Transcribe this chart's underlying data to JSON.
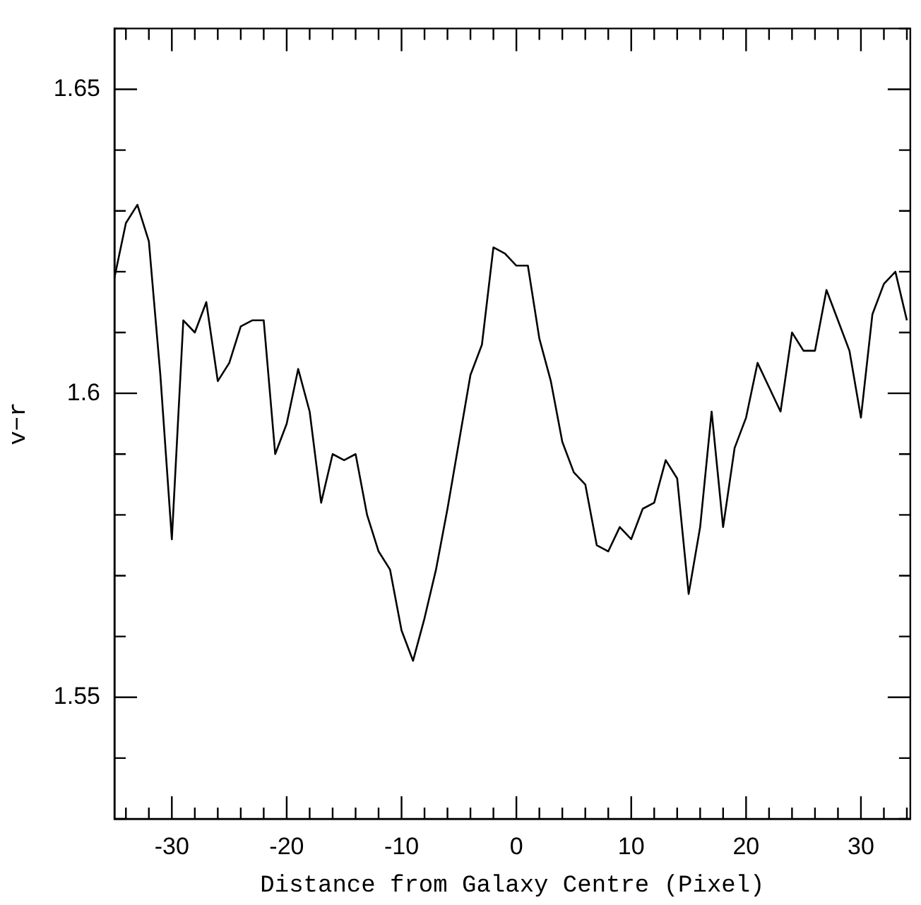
{
  "chart_data": {
    "type": "line",
    "xlabel": "Distance from Galaxy Centre (Pixel)",
    "ylabel": "v−r",
    "legend": false,
    "grid": false,
    "marker": "none",
    "line_style": "solid",
    "xlim": [
      -35,
      34.3
    ],
    "ylim": [
      1.53,
      1.66
    ],
    "xticks": [
      {
        "value": -34,
        "label": null
      },
      {
        "value": -32,
        "label": null
      },
      -30,
      {
        "value": -28,
        "label": null
      },
      {
        "value": -26,
        "label": null
      },
      {
        "value": -24,
        "label": null
      },
      {
        "value": -22,
        "label": null
      },
      -20,
      {
        "value": -18,
        "label": null
      },
      {
        "value": -16,
        "label": null
      },
      {
        "value": -14,
        "label": null
      },
      {
        "value": -12,
        "label": null
      },
      -10,
      {
        "value": -8,
        "label": null
      },
      {
        "value": -6,
        "label": null
      },
      {
        "value": -4,
        "label": null
      },
      {
        "value": -2,
        "label": null
      },
      0,
      {
        "value": 2,
        "label": null
      },
      {
        "value": 4,
        "label": null
      },
      {
        "value": 6,
        "label": null
      },
      {
        "value": 8,
        "label": null
      },
      10,
      {
        "value": 12,
        "label": null
      },
      {
        "value": 14,
        "label": null
      },
      {
        "value": 16,
        "label": null
      },
      {
        "value": 18,
        "label": null
      },
      20,
      {
        "value": 22,
        "label": null
      },
      {
        "value": 24,
        "label": null
      },
      {
        "value": 26,
        "label": null
      },
      {
        "value": 28,
        "label": null
      },
      30,
      {
        "value": 32,
        "label": null
      },
      {
        "value": 34,
        "label": null
      }
    ],
    "yticks": [
      {
        "value": 1.53,
        "label": null
      },
      {
        "value": 1.54,
        "label": null
      },
      1.55,
      {
        "value": 1.56,
        "label": null
      },
      {
        "value": 1.57,
        "label": null
      },
      {
        "value": 1.58,
        "label": null
      },
      {
        "value": 1.59,
        "label": null
      },
      {
        "value": 1.6,
        "label": "1.6"
      },
      {
        "value": 1.61,
        "label": null
      },
      {
        "value": 1.62,
        "label": null
      },
      {
        "value": 1.63,
        "label": null
      },
      {
        "value": 1.64,
        "label": null
      },
      1.65,
      {
        "value": 1.66,
        "label": null
      }
    ],
    "x": [
      -35,
      -34,
      -33,
      -32,
      -31,
      -30,
      -29,
      -28,
      -27,
      -26,
      -25,
      -24,
      -23,
      -22,
      -21,
      -20,
      -19,
      -18,
      -17,
      -16,
      -15,
      -14,
      -13,
      -12,
      -11,
      -10,
      -9,
      -8,
      -7,
      -6,
      -5,
      -4,
      -3,
      -2,
      -1,
      0,
      1,
      2,
      3,
      4,
      5,
      6,
      7,
      8,
      9,
      10,
      11,
      12,
      13,
      14,
      15,
      16,
      17,
      18,
      19,
      20,
      21,
      22,
      23,
      24,
      25,
      26,
      27,
      28,
      29,
      30,
      31,
      32,
      33,
      34
    ],
    "series": [
      {
        "color": "#000000",
        "values": [
          1.619,
          1.628,
          1.631,
          1.625,
          1.603,
          1.576,
          1.612,
          1.61,
          1.615,
          1.602,
          1.605,
          1.611,
          1.612,
          1.612,
          1.59,
          1.595,
          1.604,
          1.597,
          1.582,
          1.59,
          1.589,
          1.59,
          1.58,
          1.574,
          1.571,
          1.561,
          1.556,
          1.563,
          1.571,
          1.581,
          1.592,
          1.603,
          1.608,
          1.624,
          1.623,
          1.621,
          1.621,
          1.609,
          1.602,
          1.592,
          1.587,
          1.585,
          1.575,
          1.574,
          1.578,
          1.576,
          1.581,
          1.582,
          1.589,
          1.586,
          1.567,
          1.578,
          1.597,
          1.578,
          1.591,
          1.596,
          1.605,
          1.601,
          1.597,
          1.61,
          1.607,
          1.607,
          1.617,
          1.612,
          1.607,
          1.596,
          1.613,
          1.618,
          1.62,
          1.612
        ]
      }
    ]
  }
}
